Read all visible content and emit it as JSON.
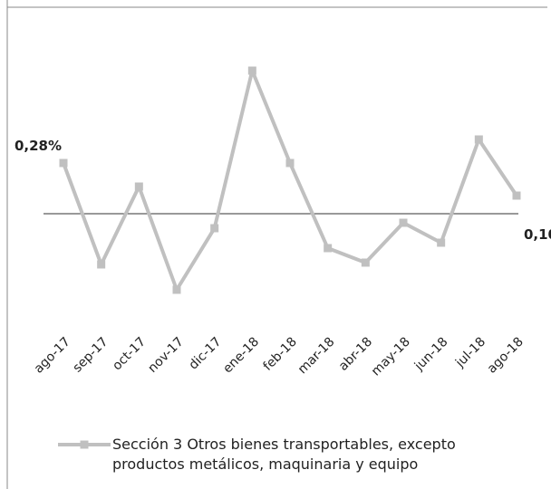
{
  "chart_data": {
    "type": "line",
    "categories": [
      "ago-17",
      "sep-17",
      "oct-17",
      "nov-17",
      "dic-17",
      "ene-18",
      "feb-18",
      "mar-18",
      "abr-18",
      "may-18",
      "jun-18",
      "jul-18",
      "ago-18"
    ],
    "series": [
      {
        "name": "Sección 3 Otros bienes transportables, excepto productos metálicos, maquinaria y equipo",
        "color": "#c0c0c0",
        "values": [
          0.28,
          -0.28,
          0.15,
          -0.42,
          -0.08,
          0.79,
          0.28,
          -0.19,
          -0.27,
          -0.05,
          -0.16,
          0.41,
          0.1
        ],
        "value_labels": [
          "0,28%",
          null,
          null,
          null,
          null,
          null,
          null,
          null,
          null,
          null,
          null,
          null,
          "0,10%"
        ]
      }
    ],
    "ylim": [
      -0.6,
      0.98
    ]
  }
}
